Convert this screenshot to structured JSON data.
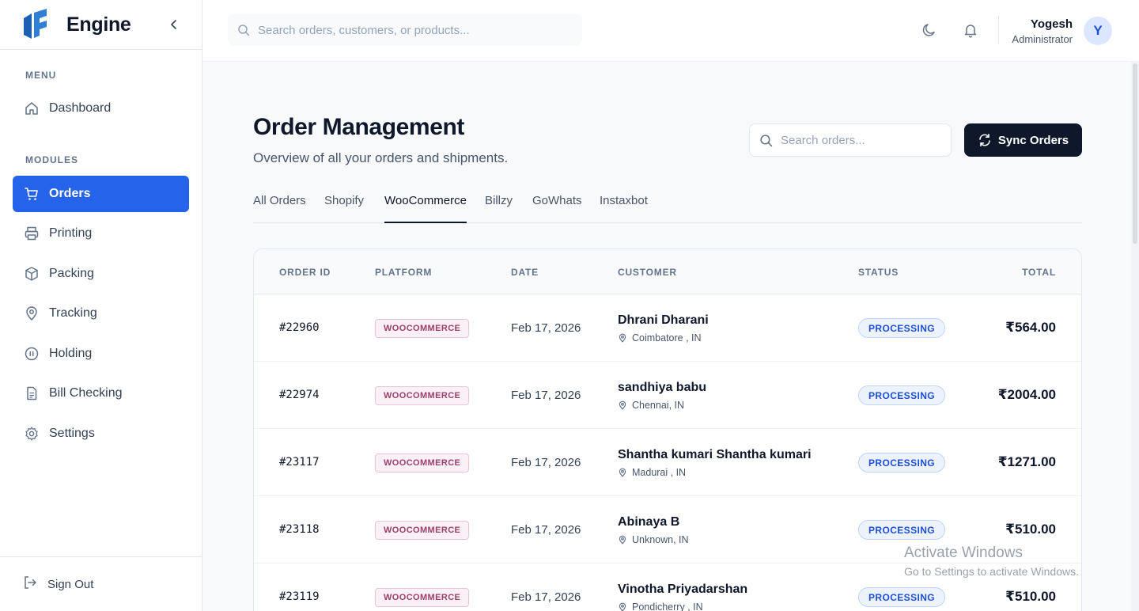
{
  "app": {
    "name": "Engine",
    "accent": "#2563eb"
  },
  "sidebar": {
    "menu_label": "MENU",
    "modules_label": "MODULES",
    "menu_items": [
      {
        "label": "Dashboard",
        "icon": "home-icon"
      }
    ],
    "module_items": [
      {
        "label": "Orders",
        "icon": "cart-icon",
        "active": true
      },
      {
        "label": "Printing",
        "icon": "printer-icon"
      },
      {
        "label": "Packing",
        "icon": "package-icon"
      },
      {
        "label": "Tracking",
        "icon": "map-pin-icon"
      },
      {
        "label": "Holding",
        "icon": "pause-circle-icon"
      },
      {
        "label": "Bill Checking",
        "icon": "file-text-icon"
      },
      {
        "label": "Settings",
        "icon": "gear-icon"
      }
    ],
    "sign_out": "Sign Out"
  },
  "topbar": {
    "search_placeholder": "Search orders, customers, or products...",
    "user_name": "Yogesh",
    "user_role": "Administrator",
    "avatar_initial": "Y"
  },
  "page": {
    "title": "Order Management",
    "subtitle": "Overview of all your orders and shipments.",
    "search_placeholder": "Search orders...",
    "sync_label": "Sync Orders",
    "tabs": [
      {
        "label": "All Orders"
      },
      {
        "label": "Shopify"
      },
      {
        "label": "WooCommerce",
        "active": true
      },
      {
        "label": "Billzy"
      },
      {
        "label": "GoWhats"
      },
      {
        "label": "Instaxbot"
      }
    ]
  },
  "table": {
    "headers": {
      "order_id": "ORDER ID",
      "platform": "PLATFORM",
      "date": "DATE",
      "customer": "CUSTOMER",
      "status": "STATUS",
      "total": "TOTAL"
    },
    "rows": [
      {
        "id": "#22960",
        "platform": "WOOCOMMERCE",
        "date": "Feb 17, 2026",
        "name": "Dhrani Dharani",
        "location": "Coimbatore , IN",
        "status": "PROCESSING",
        "total": "₹564.00"
      },
      {
        "id": "#22974",
        "platform": "WOOCOMMERCE",
        "date": "Feb 17, 2026",
        "name": "sandhiya babu",
        "location": "Chennai, IN",
        "status": "PROCESSING",
        "total": "₹2004.00"
      },
      {
        "id": "#23117",
        "platform": "WOOCOMMERCE",
        "date": "Feb 17, 2026",
        "name": "Shantha kumari Shantha kumari",
        "location": "Madurai , IN",
        "status": "PROCESSING",
        "total": "₹1271.00"
      },
      {
        "id": "#23118",
        "platform": "WOOCOMMERCE",
        "date": "Feb 17, 2026",
        "name": "Abinaya B",
        "location": "Unknown, IN",
        "status": "PROCESSING",
        "total": "₹510.00"
      },
      {
        "id": "#23119",
        "platform": "WOOCOMMERCE",
        "date": "Feb 17, 2026",
        "name": "Vinotha Priyadarshan",
        "location": "Pondicherry , IN",
        "status": "PROCESSING",
        "total": "₹510.00"
      }
    ]
  },
  "watermark": {
    "title": "Activate Windows",
    "subtitle": "Go to Settings to activate Windows."
  }
}
